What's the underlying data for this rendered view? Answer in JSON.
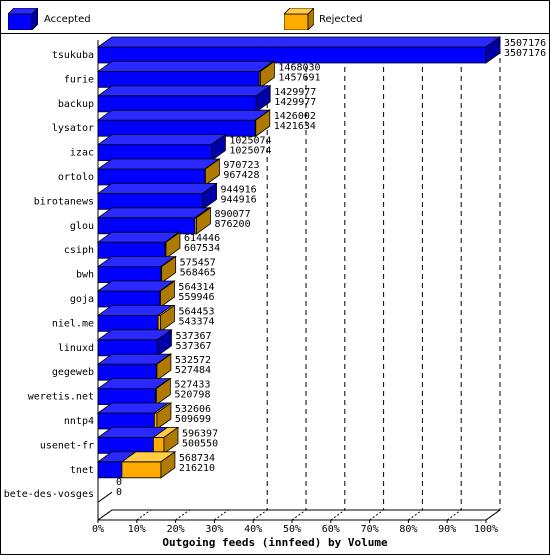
{
  "legend": {
    "accepted_label": "Accepted",
    "rejected_label": "Rejected"
  },
  "colors": {
    "accepted_front": "#0000ff",
    "accepted_top": "#2a2aff",
    "accepted_side": "#0000a8",
    "rejected_front": "#ffaa00",
    "rejected_top": "#ffcc44",
    "rejected_side": "#b07a00"
  },
  "chart_data": {
    "type": "bar",
    "orientation": "horizontal",
    "stacked_3d": true,
    "xlabel": "Outgoing feeds (innfeed) by Volume",
    "xticks": [
      "0%",
      "10%",
      "20%",
      "30%",
      "40%",
      "50%",
      "60%",
      "70%",
      "80%",
      "90%",
      "100%"
    ],
    "xlim": [
      0,
      3507176
    ],
    "grid": "dashed vertical at 40%-100%",
    "legend_position": "top",
    "categories": [
      "tsukuba",
      "furie",
      "backup",
      "lysator",
      "izac",
      "ortolo",
      "birotanews",
      "glou",
      "csiph",
      "bwh",
      "goja",
      "niel.me",
      "linuxd",
      "gegeweb",
      "weretis.net",
      "nntp4",
      "usenet-fr",
      "tnet",
      "bete-des-vosges"
    ],
    "series": [
      {
        "name": "Accepted",
        "values": [
          3507176,
          1457691,
          1429977,
          1421634,
          1025074,
          967428,
          944916,
          876200,
          607534,
          568465,
          559946,
          543374,
          537367,
          527484,
          520798,
          509699,
          500550,
          216210,
          0
        ]
      },
      {
        "name": "Rejected",
        "values": [
          0,
          10339,
          0,
          4368,
          0,
          3295,
          0,
          13877,
          6912,
          6992,
          4368,
          21079,
          0,
          5088,
          6635,
          22907,
          95847,
          352524,
          0
        ]
      }
    ],
    "label_top": [
      "3507176",
      "1468030",
      "1429977",
      "1426002",
      "1025074",
      "970723",
      "944916",
      "890077",
      "614446",
      "575457",
      "564314",
      "564453",
      "537367",
      "532572",
      "527433",
      "532606",
      "596397",
      "568734",
      "0"
    ],
    "label_bottom": [
      "3507176",
      "1457691",
      "1429977",
      "1421634",
      "1025074",
      "967428",
      "944916",
      "876200",
      "607534",
      "568465",
      "559946",
      "543374",
      "537367",
      "527484",
      "520798",
      "509699",
      "500550",
      "216210",
      "0"
    ]
  }
}
